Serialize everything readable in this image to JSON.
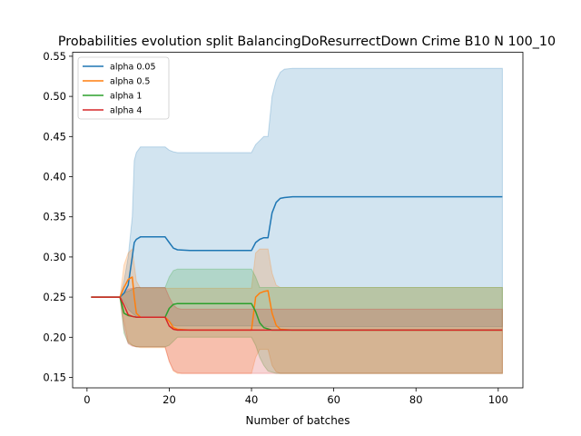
{
  "chart_data": {
    "type": "line",
    "title": "Probabilities evolution split BalancingDoResurrectDown Crime B10 N 100_10",
    "xlabel": "Number of batches",
    "ylabel": "",
    "xlim": [
      -3.5,
      106
    ],
    "ylim": [
      0.137,
      0.555
    ],
    "xticks": [
      0,
      20,
      40,
      60,
      80,
      100
    ],
    "yticks": [
      0.15,
      0.2,
      0.25,
      0.3,
      0.35,
      0.4,
      0.45,
      0.5,
      0.55
    ],
    "grid": false,
    "legend_position": "top-left",
    "series": [
      {
        "name": "alpha 0.05",
        "color": "#1f77b4",
        "band_opacity": 0.2,
        "points": [
          [
            1,
            0.25
          ],
          [
            8,
            0.25
          ],
          [
            9,
            0.255
          ],
          [
            10,
            0.265
          ],
          [
            11,
            0.3
          ],
          [
            11.5,
            0.318
          ],
          [
            12,
            0.322
          ],
          [
            13,
            0.325
          ],
          [
            19,
            0.325
          ],
          [
            20,
            0.318
          ],
          [
            21,
            0.311
          ],
          [
            22,
            0.309
          ],
          [
            25,
            0.308
          ],
          [
            40,
            0.308
          ],
          [
            41,
            0.318
          ],
          [
            42,
            0.322
          ],
          [
            43,
            0.324
          ],
          [
            44,
            0.324
          ],
          [
            45,
            0.355
          ],
          [
            46,
            0.368
          ],
          [
            47,
            0.373
          ],
          [
            48,
            0.374
          ],
          [
            50,
            0.375
          ],
          [
            101,
            0.375
          ]
        ],
        "band_upper": [
          [
            1,
            0.25
          ],
          [
            8,
            0.25
          ],
          [
            9,
            0.27
          ],
          [
            10,
            0.3
          ],
          [
            11,
            0.35
          ],
          [
            11.5,
            0.42
          ],
          [
            12,
            0.43
          ],
          [
            13,
            0.437
          ],
          [
            19,
            0.437
          ],
          [
            20,
            0.433
          ],
          [
            21,
            0.431
          ],
          [
            22,
            0.43
          ],
          [
            40,
            0.43
          ],
          [
            41,
            0.44
          ],
          [
            42,
            0.445
          ],
          [
            43,
            0.45
          ],
          [
            44,
            0.45
          ],
          [
            45,
            0.5
          ],
          [
            46,
            0.52
          ],
          [
            47,
            0.53
          ],
          [
            48,
            0.534
          ],
          [
            50,
            0.535
          ],
          [
            101,
            0.535
          ]
        ],
        "band_lower": [
          [
            1,
            0.25
          ],
          [
            8,
            0.25
          ],
          [
            9,
            0.245
          ],
          [
            10,
            0.235
          ],
          [
            11,
            0.23
          ],
          [
            12,
            0.226
          ],
          [
            13,
            0.225
          ],
          [
            19,
            0.225
          ],
          [
            20,
            0.22
          ],
          [
            21,
            0.215
          ],
          [
            22,
            0.214
          ],
          [
            40,
            0.214
          ],
          [
            42,
            0.214
          ],
          [
            44,
            0.213
          ],
          [
            46,
            0.213
          ],
          [
            101,
            0.213
          ]
        ]
      },
      {
        "name": "alpha 0.5",
        "color": "#ff7f0e",
        "band_opacity": 0.2,
        "points": [
          [
            1,
            0.25
          ],
          [
            8,
            0.25
          ],
          [
            9,
            0.262
          ],
          [
            10,
            0.272
          ],
          [
            11,
            0.275
          ],
          [
            11.5,
            0.25
          ],
          [
            12,
            0.23
          ],
          [
            13,
            0.225
          ],
          [
            19,
            0.225
          ],
          [
            20,
            0.22
          ],
          [
            21,
            0.212
          ],
          [
            22,
            0.21
          ],
          [
            25,
            0.209
          ],
          [
            40,
            0.209
          ],
          [
            41,
            0.25
          ],
          [
            42,
            0.255
          ],
          [
            43,
            0.257
          ],
          [
            44,
            0.258
          ],
          [
            45,
            0.23
          ],
          [
            46,
            0.215
          ],
          [
            47,
            0.21
          ],
          [
            50,
            0.209
          ],
          [
            101,
            0.209
          ]
        ],
        "band_upper": [
          [
            1,
            0.25
          ],
          [
            8,
            0.25
          ],
          [
            9,
            0.29
          ],
          [
            10,
            0.305
          ],
          [
            11,
            0.31
          ],
          [
            12,
            0.27
          ],
          [
            13,
            0.261
          ],
          [
            19,
            0.261
          ],
          [
            40,
            0.261
          ],
          [
            41,
            0.305
          ],
          [
            42,
            0.31
          ],
          [
            44,
            0.31
          ],
          [
            45,
            0.28
          ],
          [
            46,
            0.265
          ],
          [
            47,
            0.262
          ],
          [
            101,
            0.262
          ]
        ],
        "band_lower": [
          [
            1,
            0.25
          ],
          [
            8,
            0.25
          ],
          [
            9,
            0.22
          ],
          [
            10,
            0.195
          ],
          [
            11,
            0.19
          ],
          [
            13,
            0.187
          ],
          [
            19,
            0.187
          ],
          [
            20,
            0.17
          ],
          [
            21,
            0.158
          ],
          [
            22,
            0.155
          ],
          [
            40,
            0.155
          ],
          [
            41,
            0.175
          ],
          [
            42,
            0.185
          ],
          [
            44,
            0.185
          ],
          [
            45,
            0.165
          ],
          [
            46,
            0.157
          ],
          [
            47,
            0.155
          ],
          [
            101,
            0.155
          ]
        ]
      },
      {
        "name": "alpha 1",
        "color": "#2ca02c",
        "band_opacity": 0.2,
        "points": [
          [
            1,
            0.25
          ],
          [
            8,
            0.25
          ],
          [
            9,
            0.23
          ],
          [
            10,
            0.227
          ],
          [
            11,
            0.226
          ],
          [
            12,
            0.225
          ],
          [
            19,
            0.225
          ],
          [
            20,
            0.236
          ],
          [
            21,
            0.241
          ],
          [
            22,
            0.242
          ],
          [
            40,
            0.242
          ],
          [
            41,
            0.232
          ],
          [
            42,
            0.218
          ],
          [
            43,
            0.212
          ],
          [
            45,
            0.209
          ],
          [
            101,
            0.209
          ]
        ],
        "band_upper": [
          [
            1,
            0.25
          ],
          [
            8,
            0.25
          ],
          [
            9,
            0.255
          ],
          [
            12,
            0.262
          ],
          [
            19,
            0.262
          ],
          [
            20,
            0.275
          ],
          [
            21,
            0.283
          ],
          [
            22,
            0.285
          ],
          [
            40,
            0.285
          ],
          [
            41,
            0.275
          ],
          [
            42,
            0.262
          ],
          [
            44,
            0.262
          ],
          [
            101,
            0.262
          ]
        ],
        "band_lower": [
          [
            1,
            0.25
          ],
          [
            8,
            0.25
          ],
          [
            9,
            0.205
          ],
          [
            10,
            0.193
          ],
          [
            11,
            0.19
          ],
          [
            12,
            0.188
          ],
          [
            19,
            0.188
          ],
          [
            20,
            0.19
          ],
          [
            21,
            0.195
          ],
          [
            22,
            0.2
          ],
          [
            40,
            0.2
          ],
          [
            41,
            0.19
          ],
          [
            42,
            0.175
          ],
          [
            43,
            0.165
          ],
          [
            44,
            0.158
          ],
          [
            46,
            0.155
          ],
          [
            101,
            0.155
          ]
        ]
      },
      {
        "name": "alpha 4",
        "color": "#d62728",
        "band_opacity": 0.2,
        "points": [
          [
            1,
            0.25
          ],
          [
            8,
            0.25
          ],
          [
            9,
            0.24
          ],
          [
            10,
            0.228
          ],
          [
            11,
            0.226
          ],
          [
            12,
            0.225
          ],
          [
            19,
            0.225
          ],
          [
            20,
            0.214
          ],
          [
            21,
            0.21
          ],
          [
            22,
            0.209
          ],
          [
            101,
            0.209
          ]
        ],
        "band_upper": [
          [
            1,
            0.25
          ],
          [
            8,
            0.25
          ],
          [
            9,
            0.255
          ],
          [
            10,
            0.26
          ],
          [
            12,
            0.262
          ],
          [
            19,
            0.262
          ],
          [
            20,
            0.25
          ],
          [
            21,
            0.24
          ],
          [
            22,
            0.236
          ],
          [
            23,
            0.235
          ],
          [
            101,
            0.235
          ]
        ],
        "band_lower": [
          [
            1,
            0.25
          ],
          [
            8,
            0.25
          ],
          [
            9,
            0.21
          ],
          [
            10,
            0.192
          ],
          [
            11,
            0.189
          ],
          [
            12,
            0.188
          ],
          [
            19,
            0.188
          ],
          [
            20,
            0.17
          ],
          [
            21,
            0.159
          ],
          [
            22,
            0.156
          ],
          [
            23,
            0.155
          ],
          [
            101,
            0.155
          ]
        ]
      }
    ]
  }
}
